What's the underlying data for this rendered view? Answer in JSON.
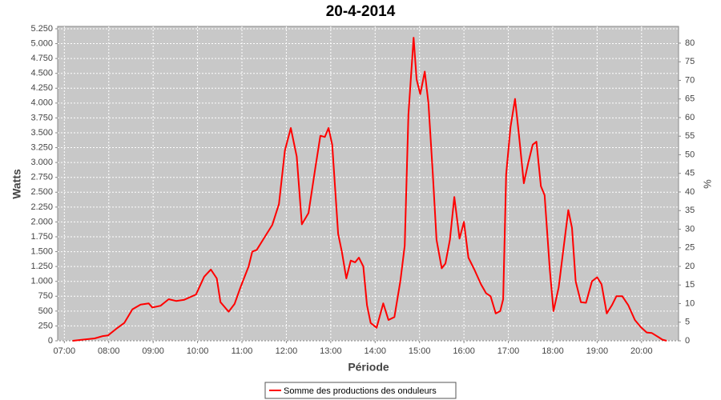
{
  "chart_data": {
    "type": "line",
    "title": "20-4-2014",
    "x_label": "Période",
    "y_label": "Watts",
    "y2_label": "%",
    "x": [
      "07:11",
      "07:22",
      "07:41",
      "07:52",
      "07:59",
      "08:10",
      "08:21",
      "08:32",
      "08:43",
      "08:54",
      "08:59",
      "09:10",
      "09:21",
      "09:31",
      "09:42",
      "09:58",
      "10:09",
      "10:18",
      "10:26",
      "10:31",
      "10:42",
      "10:50",
      "10:58",
      "11:09",
      "11:14",
      "11:20",
      "11:31",
      "11:41",
      "11:50",
      "11:58",
      "12:06",
      "12:14",
      "12:21",
      "12:30",
      "12:39",
      "12:46",
      "12:52",
      "12:57",
      "13:02",
      "13:10",
      "13:15",
      "13:21",
      "13:27",
      "13:33",
      "13:38",
      "13:44",
      "13:49",
      "13:54",
      "14:02",
      "14:11",
      "14:18",
      "14:26",
      "14:34",
      "14:40",
      "14:45",
      "14:52",
      "14:56",
      "15:01",
      "15:07",
      "15:12",
      "15:18",
      "15:23",
      "15:30",
      "15:35",
      "15:41",
      "15:47",
      "15:54",
      "16:00",
      "16:06",
      "16:14",
      "16:23",
      "16:30",
      "16:36",
      "16:43",
      "16:49",
      "16:53",
      "16:57",
      "17:03",
      "17:09",
      "17:14",
      "17:21",
      "17:27",
      "17:33",
      "17:38",
      "17:44",
      "17:49",
      "17:56",
      "18:01",
      "18:08",
      "18:14",
      "18:21",
      "18:26",
      "18:31",
      "18:38",
      "18:45",
      "18:53",
      "19:00",
      "19:06",
      "19:13",
      "19:20",
      "19:26",
      "19:34",
      "19:42",
      "19:51",
      "19:59",
      "20:07",
      "20:14",
      "20:23",
      "20:28",
      "20:34"
    ],
    "series": [
      {
        "name": "Somme des productions des onduleurs",
        "color": "#ff0000",
        "values": [
          0,
          15,
          40,
          80,
          90,
          200,
          300,
          530,
          610,
          630,
          560,
          590,
          700,
          670,
          690,
          780,
          1080,
          1200,
          1050,
          650,
          490,
          620,
          900,
          1250,
          1500,
          1530,
          1750,
          1950,
          2300,
          3200,
          3580,
          3100,
          1960,
          2150,
          2900,
          3450,
          3430,
          3580,
          3300,
          1800,
          1500,
          1050,
          1350,
          1320,
          1400,
          1250,
          600,
          300,
          220,
          630,
          350,
          400,
          1000,
          1600,
          3800,
          5100,
          4400,
          4150,
          4530,
          4000,
          2800,
          1700,
          1220,
          1300,
          1700,
          2420,
          1720,
          2000,
          1400,
          1200,
          950,
          800,
          750,
          460,
          500,
          700,
          2800,
          3600,
          4070,
          3500,
          2650,
          3000,
          3300,
          3350,
          2600,
          2450,
          1200,
          500,
          900,
          1500,
          2200,
          1900,
          1000,
          650,
          640,
          1000,
          1070,
          950,
          460,
          600,
          750,
          750,
          600,
          350,
          230,
          140,
          130,
          60,
          20,
          0
        ]
      }
    ],
    "xlim": [
      "06:51",
      "20:50"
    ],
    "xticks": [
      "07:00",
      "08:00",
      "09:00",
      "10:00",
      "11:00",
      "12:00",
      "13:00",
      "14:00",
      "15:00",
      "16:00",
      "17:00",
      "18:00",
      "19:00",
      "20:00"
    ],
    "ylim": [
      0,
      5290
    ],
    "yticks": [
      0,
      250,
      500,
      750,
      {
        "value": 1000,
        "label": "1.000"
      },
      {
        "value": 1250,
        "label": "1.250"
      },
      {
        "value": 1500,
        "label": "1.500"
      },
      {
        "value": 1750,
        "label": "1.750"
      },
      {
        "value": 2000,
        "label": "2.000"
      },
      {
        "value": 2250,
        "label": "2.250"
      },
      {
        "value": 2500,
        "label": "2.500"
      },
      {
        "value": 2750,
        "label": "2.750"
      },
      {
        "value": 3000,
        "label": "3.000"
      },
      {
        "value": 3250,
        "label": "3.250"
      },
      {
        "value": 3500,
        "label": "3.500"
      },
      {
        "value": 3750,
        "label": "3.750"
      },
      {
        "value": 4000,
        "label": "4.000"
      },
      {
        "value": 4250,
        "label": "4.250"
      },
      {
        "value": 4500,
        "label": "4.500"
      },
      {
        "value": 4750,
        "label": "4.750"
      },
      {
        "value": 5000,
        "label": "5.000"
      },
      {
        "value": 5250,
        "label": "5.250"
      }
    ],
    "y2lim": [
      0,
      84.5
    ],
    "y2ticks": [
      0,
      5,
      10,
      15,
      20,
      25,
      30,
      35,
      40,
      45,
      50,
      55,
      60,
      65,
      70,
      75,
      80
    ],
    "grid": true
  }
}
